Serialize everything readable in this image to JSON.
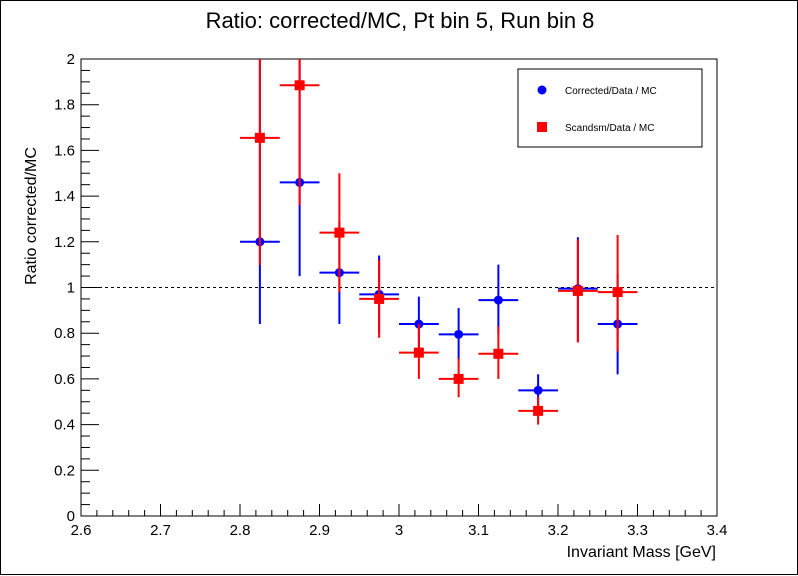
{
  "chart_data": {
    "type": "scatter",
    "title": "Ratio: corrected/MC, Pt bin 5, Run bin 8",
    "xlabel": "Invariant Mass [GeV]",
    "ylabel": "Ratio corrected/MC",
    "xlim": [
      2.6,
      3.4
    ],
    "ylim": [
      0,
      2
    ],
    "xticks": [
      "2.6",
      "2.7",
      "2.8",
      "2.9",
      "3",
      "3.1",
      "3.2",
      "3.3",
      "3.4"
    ],
    "yticks": [
      "0",
      "0.2",
      "0.4",
      "0.6",
      "0.8",
      "1",
      "1.2",
      "1.4",
      "1.6",
      "1.8",
      "2"
    ],
    "reference_line": 1,
    "grid": false,
    "legend_position": "top-right",
    "series": [
      {
        "name": "Corrected/Data / MC",
        "color": "#0000ff",
        "marker": "circle",
        "points": [
          {
            "x": 2.825,
            "y": 1.2,
            "xerr": 0.025,
            "ylo": 0.84,
            "yhi": 2.0
          },
          {
            "x": 2.875,
            "y": 1.46,
            "xerr": 0.025,
            "ylo": 1.05,
            "yhi": 2.0
          },
          {
            "x": 2.925,
            "y": 1.065,
            "xerr": 0.025,
            "ylo": 0.84,
            "yhi": 1.29
          },
          {
            "x": 2.975,
            "y": 0.97,
            "xerr": 0.025,
            "ylo": 0.8,
            "yhi": 1.14
          },
          {
            "x": 3.025,
            "y": 0.84,
            "xerr": 0.025,
            "ylo": 0.7,
            "yhi": 0.96
          },
          {
            "x": 3.075,
            "y": 0.795,
            "xerr": 0.025,
            "ylo": 0.68,
            "yhi": 0.91
          },
          {
            "x": 3.125,
            "y": 0.945,
            "xerr": 0.025,
            "ylo": 0.8,
            "yhi": 1.1
          },
          {
            "x": 3.175,
            "y": 0.55,
            "xerr": 0.025,
            "ylo": 0.48,
            "yhi": 0.62
          },
          {
            "x": 3.225,
            "y": 0.995,
            "xerr": 0.025,
            "ylo": 0.76,
            "yhi": 1.22
          },
          {
            "x": 3.275,
            "y": 0.84,
            "xerr": 0.025,
            "ylo": 0.62,
            "yhi": 1.06
          }
        ]
      },
      {
        "name": "Scandsm/Data / MC",
        "color": "#ff0000",
        "marker": "square",
        "points": [
          {
            "x": 2.825,
            "y": 1.655,
            "xerr": 0.025,
            "ylo": 1.1,
            "yhi": 2.0
          },
          {
            "x": 2.875,
            "y": 1.885,
            "xerr": 0.025,
            "ylo": 1.36,
            "yhi": 2.0
          },
          {
            "x": 2.925,
            "y": 1.24,
            "xerr": 0.025,
            "ylo": 0.98,
            "yhi": 1.5
          },
          {
            "x": 2.975,
            "y": 0.95,
            "xerr": 0.025,
            "ylo": 0.78,
            "yhi": 1.12
          },
          {
            "x": 3.025,
            "y": 0.715,
            "xerr": 0.025,
            "ylo": 0.6,
            "yhi": 0.84
          },
          {
            "x": 3.075,
            "y": 0.6,
            "xerr": 0.025,
            "ylo": 0.52,
            "yhi": 0.69
          },
          {
            "x": 3.125,
            "y": 0.71,
            "xerr": 0.025,
            "ylo": 0.6,
            "yhi": 0.83
          },
          {
            "x": 3.175,
            "y": 0.46,
            "xerr": 0.025,
            "ylo": 0.4,
            "yhi": 0.52
          },
          {
            "x": 3.225,
            "y": 0.985,
            "xerr": 0.025,
            "ylo": 0.76,
            "yhi": 1.21
          },
          {
            "x": 3.275,
            "y": 0.98,
            "xerr": 0.025,
            "ylo": 0.72,
            "yhi": 1.23
          }
        ]
      }
    ]
  }
}
